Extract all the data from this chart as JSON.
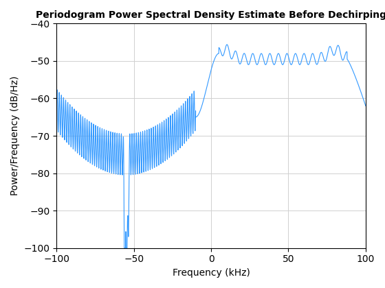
{
  "title": "Periodogram Power Spectral Density Estimate Before Dechirping",
  "xlabel": "Frequency (kHz)",
  "ylabel": "Power/Frequency (dB/Hz)",
  "xlim": [
    -100,
    100
  ],
  "ylim": [
    -100,
    -40
  ],
  "xticks": [
    -100,
    -50,
    0,
    50,
    100
  ],
  "yticks": [
    -100,
    -90,
    -80,
    -70,
    -60,
    -50,
    -40
  ],
  "line_color": "#3399FF",
  "line_width": 0.8,
  "grid_color": "#d0d0d0",
  "bg_color": "#ffffff",
  "title_fontsize": 10,
  "label_fontsize": 10,
  "tick_fontsize": 10
}
